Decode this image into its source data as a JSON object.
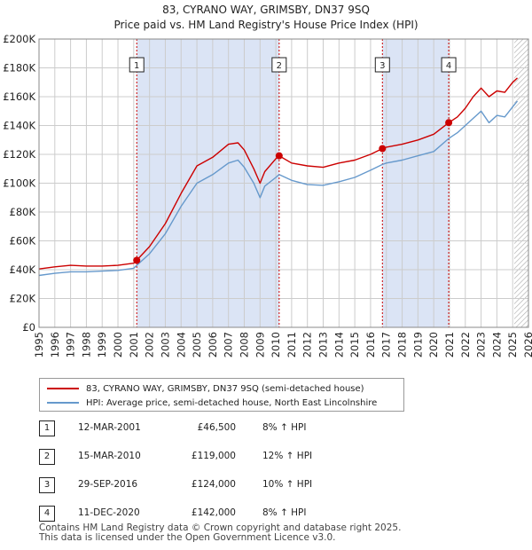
{
  "chart_data": {
    "type": "line",
    "title": "83, CYRANO WAY, GRIMSBY, DN37 9SQ",
    "subtitle": "Price paid vs. HM Land Registry's House Price Index (HPI)",
    "xlabel": "",
    "ylabel": "",
    "xlim": [
      1995,
      2026
    ],
    "ylim": [
      0,
      200000
    ],
    "y_ticks": [
      0,
      20000,
      40000,
      60000,
      80000,
      100000,
      120000,
      140000,
      160000,
      180000,
      200000
    ],
    "y_tick_labels": [
      "£0",
      "£20K",
      "£40K",
      "£60K",
      "£80K",
      "£100K",
      "£120K",
      "£140K",
      "£160K",
      "£180K",
      "£200K"
    ],
    "x_ticks": [
      1995,
      1996,
      1997,
      1998,
      1999,
      2000,
      2001,
      2002,
      2003,
      2004,
      2005,
      2006,
      2007,
      2008,
      2009,
      2010,
      2011,
      2012,
      2013,
      2014,
      2015,
      2016,
      2017,
      2018,
      2019,
      2020,
      2021,
      2022,
      2023,
      2024,
      2025,
      2026
    ],
    "x_tick_labels": [
      "1995",
      "1996",
      "1997",
      "1998",
      "1999",
      "2000",
      "2001",
      "2002",
      "2003",
      "2004",
      "2005",
      "2006",
      "2007",
      "2008",
      "2009",
      "2010",
      "2011",
      "2012",
      "2013",
      "2014",
      "2015",
      "2016",
      "2017",
      "2018",
      "2019",
      "2020",
      "2021",
      "2022",
      "2023",
      "2024",
      "2025",
      "2026"
    ],
    "grid": true,
    "series": [
      {
        "name": "83, CYRANO WAY, GRIMSBY, DN37 9SQ (semi-detached house)",
        "color": "#cc0000",
        "x": [
          1995.0,
          1996.0,
          1997.0,
          1998.0,
          1999.0,
          2000.0,
          2001.0,
          2001.19,
          2002.0,
          2003.0,
          2004.0,
          2005.0,
          2006.0,
          2007.0,
          2007.6,
          2008.0,
          2008.6,
          2009.0,
          2009.3,
          2010.0,
          2010.21,
          2011.0,
          2012.0,
          2013.0,
          2014.0,
          2015.0,
          2016.0,
          2016.75,
          2017.0,
          2018.0,
          2019.0,
          2020.0,
          2020.95,
          2021.5,
          2022.0,
          2022.5,
          2023.0,
          2023.5,
          2024.0,
          2024.5,
          2025.0,
          2025.3
        ],
        "y": [
          40500,
          42000,
          43000,
          42500,
          42500,
          43000,
          44500,
          46500,
          56000,
          72000,
          93000,
          112000,
          118000,
          127000,
          128000,
          123000,
          110000,
          100000,
          108000,
          117000,
          119000,
          114000,
          112000,
          111000,
          114000,
          116000,
          120000,
          124000,
          125000,
          127000,
          130000,
          134000,
          142000,
          146000,
          152000,
          160000,
          166000,
          160000,
          164000,
          163000,
          170000,
          173000
        ]
      },
      {
        "name": "HPI: Average price, semi-detached house, North East Lincolnshire",
        "color": "#6699cc",
        "x": [
          1995.0,
          1996.0,
          1997.0,
          1998.0,
          1999.0,
          2000.0,
          2001.0,
          2001.19,
          2002.0,
          2003.0,
          2004.0,
          2005.0,
          2006.0,
          2007.0,
          2007.6,
          2008.0,
          2008.6,
          2009.0,
          2009.3,
          2010.0,
          2010.21,
          2011.0,
          2012.0,
          2013.0,
          2014.0,
          2015.0,
          2016.0,
          2016.75,
          2017.0,
          2018.0,
          2019.0,
          2020.0,
          2020.95,
          2021.5,
          2022.0,
          2022.5,
          2023.0,
          2023.5,
          2024.0,
          2024.5,
          2025.0,
          2025.3
        ],
        "y": [
          36000,
          37500,
          38500,
          38500,
          39000,
          39500,
          41000,
          43000,
          51000,
          65000,
          84000,
          100000,
          106000,
          114000,
          116000,
          111000,
          100000,
          90000,
          98000,
          104000,
          106000,
          102000,
          99000,
          98500,
          101000,
          104000,
          109000,
          113000,
          114000,
          116000,
          119000,
          122000,
          131000,
          135000,
          140000,
          145000,
          150000,
          142000,
          147000,
          146000,
          153000,
          157000
        ]
      }
    ],
    "transactions": [
      {
        "label": "1",
        "x": 2001.19,
        "y": 46500,
        "date": "12-MAR-2001",
        "price": "£46,500",
        "hpi": "8% ↑ HPI"
      },
      {
        "label": "2",
        "x": 2010.21,
        "y": 119000,
        "date": "15-MAR-2010",
        "price": "£119,000",
        "hpi": "12% ↑ HPI"
      },
      {
        "label": "3",
        "x": 2016.75,
        "y": 124000,
        "date": "29-SEP-2016",
        "price": "£124,000",
        "hpi": "10% ↑ HPI"
      },
      {
        "label": "4",
        "x": 2020.95,
        "y": 142000,
        "date": "11-DEC-2020",
        "price": "£142,000",
        "hpi": "8% ↑ HPI"
      }
    ],
    "shaded_spans": [
      [
        2001.19,
        2010.21
      ],
      [
        2016.75,
        2020.95
      ]
    ],
    "hatched_from": 2025.1,
    "colors": {
      "background": "#ffffff",
      "shade": "#dbe4f5",
      "grid": "#cccccc",
      "vline": "#cc0000"
    }
  },
  "legend": {
    "items": [
      {
        "label": "83, CYRANO WAY, GRIMSBY, DN37 9SQ (semi-detached house)",
        "color": "#cc0000"
      },
      {
        "label": "HPI: Average price, semi-detached house, North East Lincolnshire",
        "color": "#6699cc"
      }
    ]
  },
  "footer": {
    "line1": "Contains HM Land Registry data © Crown copyright and database right 2025.",
    "line2": "This data is licensed under the Open Government Licence v3.0."
  }
}
